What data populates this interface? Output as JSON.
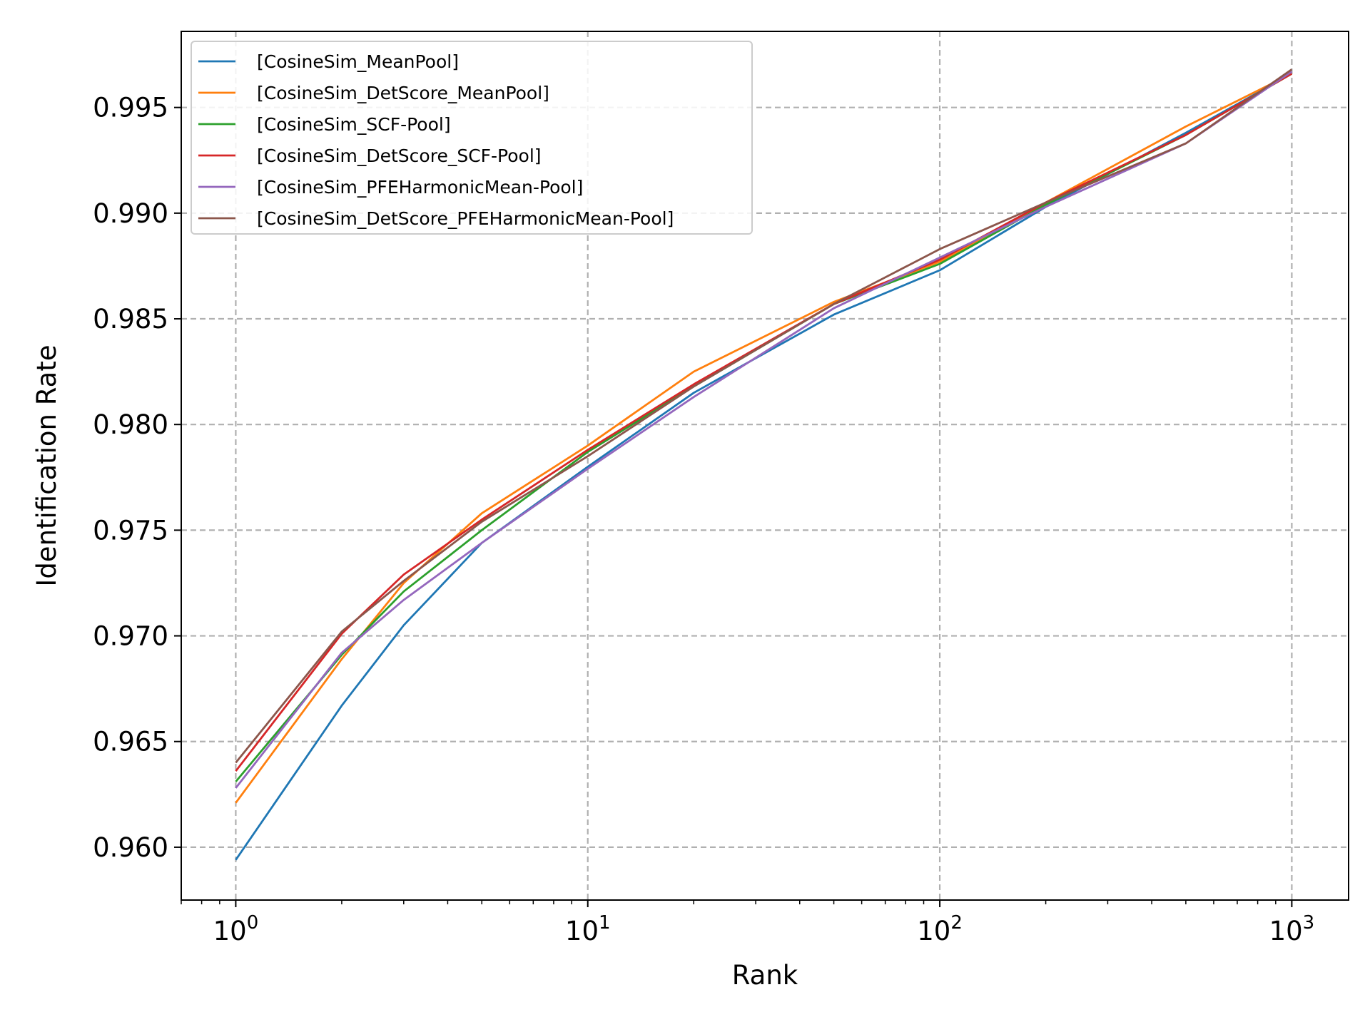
{
  "chart_data": {
    "type": "line",
    "title": "",
    "xlabel": "Rank",
    "ylabel": "Identification Rate",
    "xscale": "log",
    "xlim": [
      0.7,
      1450
    ],
    "ylim": [
      0.9575,
      0.9986
    ],
    "grid": true,
    "legend_position": "top-left",
    "x_ticks": [
      {
        "base": "10",
        "exp": "0",
        "value": 1
      },
      {
        "base": "10",
        "exp": "1",
        "value": 10
      },
      {
        "base": "10",
        "exp": "2",
        "value": 100
      },
      {
        "base": "10",
        "exp": "3",
        "value": 1000
      }
    ],
    "y_ticks": [
      "0.960",
      "0.965",
      "0.970",
      "0.975",
      "0.980",
      "0.985",
      "0.990",
      "0.995"
    ],
    "x": [
      1,
      2,
      3,
      5,
      10,
      20,
      50,
      100,
      200,
      500,
      1000
    ],
    "series": [
      {
        "name": "[CosineSim_MeanPool]",
        "color": "#1f77b4",
        "values": [
          0.9594,
          0.9667,
          0.9705,
          0.9744,
          0.978,
          0.9815,
          0.9852,
          0.9873,
          0.9903,
          0.9938,
          0.9966
        ]
      },
      {
        "name": "[CosineSim_DetScore_MeanPool]",
        "color": "#ff7f0e",
        "values": [
          0.9621,
          0.9689,
          0.9725,
          0.9758,
          0.979,
          0.9825,
          0.9858,
          0.9877,
          0.9905,
          0.9941,
          0.9966
        ]
      },
      {
        "name": "[CosineSim_SCF-Pool]",
        "color": "#2ca02c",
        "values": [
          0.9631,
          0.9691,
          0.9721,
          0.975,
          0.9787,
          0.9818,
          0.9857,
          0.9876,
          0.9904,
          0.9937,
          0.9966
        ]
      },
      {
        "name": "[CosineSim_DetScore_SCF-Pool]",
        "color": "#d62728",
        "values": [
          0.9636,
          0.9701,
          0.9729,
          0.9755,
          0.9788,
          0.9819,
          0.9857,
          0.9878,
          0.9905,
          0.9937,
          0.9966
        ]
      },
      {
        "name": "[CosineSim_PFEHarmonicMean-Pool]",
        "color": "#9467bd",
        "values": [
          0.9628,
          0.9692,
          0.9717,
          0.9744,
          0.9779,
          0.9813,
          0.9855,
          0.9879,
          0.9903,
          0.9933,
          0.9967
        ]
      },
      {
        "name": "[CosineSim_DetScore_PFEHarmonicMean-Pool]",
        "color": "#8c564b",
        "values": [
          0.964,
          0.9702,
          0.9726,
          0.9754,
          0.9785,
          0.9818,
          0.9857,
          0.9883,
          0.9905,
          0.9933,
          0.9968
        ]
      }
    ]
  }
}
